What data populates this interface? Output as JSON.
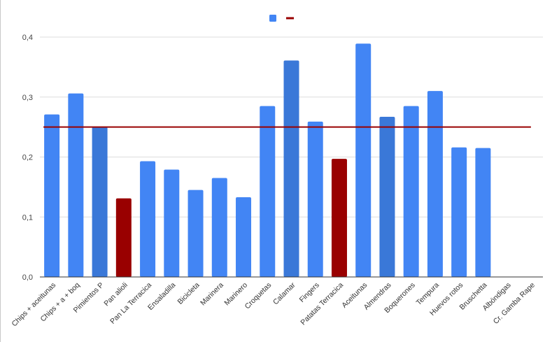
{
  "chart_data": {
    "type": "bar",
    "title": "",
    "xlabel": "",
    "ylabel": "",
    "ylim": [
      0,
      0.4
    ],
    "yticks": [
      "0,0",
      "0,1",
      "0,2",
      "0,3",
      "0,4"
    ],
    "yticks_values": [
      0,
      0.1,
      0.2,
      0.3,
      0.4
    ],
    "grid": true,
    "legend": {
      "placement": "top-center",
      "entries": [
        "",
        ""
      ]
    },
    "categories": [
      "Chips + aceitunas",
      "Chips + a + boq",
      "Pimientos P",
      "Pan alioli",
      "Pan La Terracica",
      "Ensaladilla",
      "Bicicleta",
      "Marinera",
      "Marinero",
      "Croquetas",
      "Calamar",
      "Fingers",
      "Patatas Terracica",
      "Aceitunas",
      "Almendras",
      "Boquerones",
      "Tempura",
      "Huevos rotos",
      "Bruschetta",
      "Albóndigas",
      "Cr. Gamba Rape"
    ],
    "values": [
      0.271,
      0.306,
      0.25,
      0.131,
      0.193,
      0.179,
      0.145,
      0.165,
      0.133,
      0.285,
      0.361,
      0.259,
      0.197,
      0.389,
      0.267,
      0.285,
      0.31,
      0.216,
      0.215,
      0,
      0
    ],
    "bar_colors": [
      "#4285f4",
      "#4285f4",
      "#3a78d8",
      "#990000",
      "#4285f4",
      "#4285f4",
      "#4285f4",
      "#4285f4",
      "#4285f4",
      "#4285f4",
      "#3a78d8",
      "#4285f4",
      "#990000",
      "#4285f4",
      "#3a78d8",
      "#4285f4",
      "#4285f4",
      "#4285f4",
      "#4285f4",
      "#4285f4",
      "#4285f4"
    ],
    "reference_line": {
      "value": 0.25,
      "color": "#990000"
    },
    "series_colors": {
      "bars": "#4285f4",
      "line": "#990000"
    },
    "gridline_color": "#dddddd",
    "axis_color": "#333333"
  }
}
